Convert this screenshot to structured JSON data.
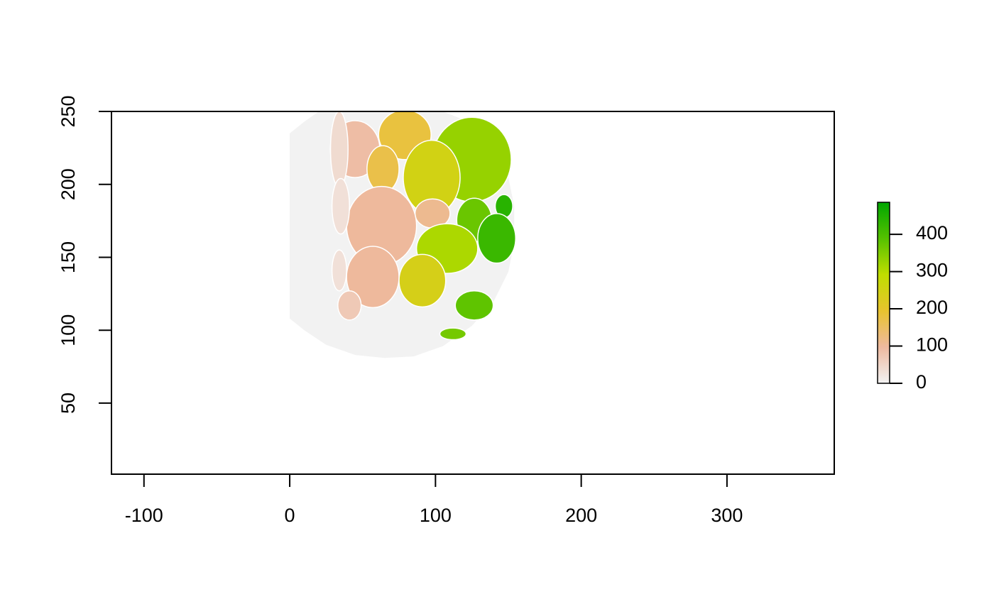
{
  "chart_data": {
    "type": "raster",
    "xlim": [
      -122.3,
      373.6
    ],
    "ylim": [
      1.3,
      250
    ],
    "xticks": [
      -100,
      0,
      100,
      200,
      300
    ],
    "yticks": [
      50,
      100,
      150,
      200,
      250
    ],
    "colorbar": {
      "range": [
        0,
        486
      ],
      "ticks": [
        0,
        100,
        200,
        300,
        400
      ],
      "colors": [
        "#f2f2f2",
        "#eeb99f",
        "#e8c32e",
        "#c0dd00",
        "#55c100",
        "#00a600"
      ]
    },
    "background": {
      "value": 0,
      "points": [
        [
          0,
          235
        ],
        [
          10,
          243
        ],
        [
          20,
          250
        ],
        [
          105,
          250
        ],
        [
          125,
          242
        ],
        [
          140,
          225
        ],
        [
          150,
          205
        ],
        [
          154,
          185
        ],
        [
          154,
          160
        ],
        [
          150,
          140
        ],
        [
          140,
          120
        ],
        [
          125,
          103
        ],
        [
          105,
          89
        ],
        [
          85,
          82
        ],
        [
          65,
          81
        ],
        [
          45,
          83
        ],
        [
          25,
          90
        ],
        [
          10,
          100
        ],
        [
          0,
          108
        ]
      ]
    },
    "regions": [
      {
        "cx": 44.8,
        "cy": 224.2,
        "rx": 17,
        "ry": 19.5,
        "value": 90
      },
      {
        "cx": 79,
        "cy": 234,
        "rx": 18,
        "ry": 17,
        "value": 180
      },
      {
        "cx": 64,
        "cy": 210.5,
        "rx": 11,
        "ry": 16,
        "value": 170
      },
      {
        "cx": 125,
        "cy": 217,
        "rx": 27,
        "ry": 29,
        "value": 330
      },
      {
        "cx": 97.4,
        "cy": 204.7,
        "rx": 19.5,
        "ry": 25.5,
        "value": 250
      },
      {
        "cx": 98,
        "cy": 180,
        "rx": 12,
        "ry": 10,
        "value": 110
      },
      {
        "cx": 63,
        "cy": 171.6,
        "rx": 24,
        "ry": 27,
        "value": 100
      },
      {
        "cx": 126.6,
        "cy": 175.5,
        "rx": 12,
        "ry": 15,
        "value": 370
      },
      {
        "cx": 147,
        "cy": 185,
        "rx": 6,
        "ry": 8,
        "value": 440
      },
      {
        "cx": 142,
        "cy": 163,
        "rx": 13,
        "ry": 17,
        "value": 420
      },
      {
        "cx": 108,
        "cy": 156,
        "rx": 21,
        "ry": 17,
        "value": 310
      },
      {
        "cx": 57,
        "cy": 136.5,
        "rx": 18,
        "ry": 21,
        "value": 100
      },
      {
        "cx": 91,
        "cy": 134,
        "rx": 16,
        "ry": 18,
        "value": 240
      },
      {
        "cx": 34,
        "cy": 224,
        "rx": 6,
        "ry": 26,
        "value": 40
      },
      {
        "cx": 35,
        "cy": 185,
        "rx": 6,
        "ry": 19,
        "value": 30
      },
      {
        "cx": 34,
        "cy": 141,
        "rx": 5,
        "ry": 14,
        "value": 30
      },
      {
        "cx": 41,
        "cy": 117,
        "rx": 8,
        "ry": 10,
        "value": 70
      },
      {
        "cx": 126.6,
        "cy": 117,
        "rx": 13,
        "ry": 10,
        "value": 380
      },
      {
        "cx": 112,
        "cy": 97.5,
        "rx": 9,
        "ry": 4,
        "value": 360
      }
    ]
  }
}
